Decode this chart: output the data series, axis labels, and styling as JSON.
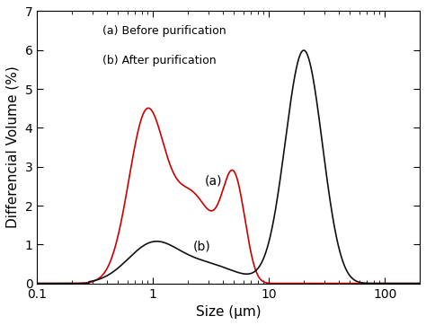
{
  "xlabel": "Size (μm)",
  "ylabel": "Differencial Volume (%)",
  "xlim_log": [
    0.1,
    200
  ],
  "ylim": [
    0,
    7
  ],
  "yticks": [
    0,
    1,
    2,
    3,
    4,
    5,
    6,
    7
  ],
  "legend_lines": [
    "(a) Before purification",
    "(b) After purification"
  ],
  "annotation_a": "(a)",
  "annotation_b": "(b)",
  "curve_a_color": "#cc0000",
  "curve_b_color": "#111111",
  "background_color": "#ffffff"
}
